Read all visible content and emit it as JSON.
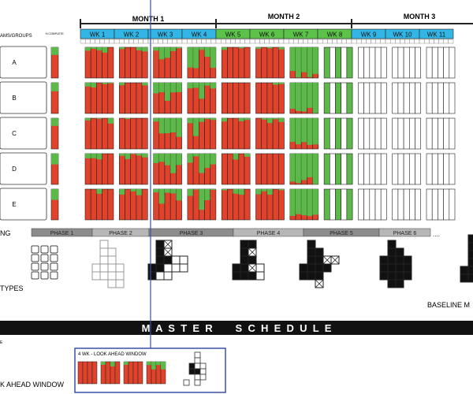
{
  "months": [
    "MONTH 1",
    "MONTH 2",
    "MONTH 3"
  ],
  "weeks": [
    {
      "label": "WK 1",
      "color": "#33b6e6"
    },
    {
      "label": "WK 2",
      "color": "#33b6e6"
    },
    {
      "label": "WK 3",
      "color": "#33b6e6"
    },
    {
      "label": "WK 4",
      "color": "#33b6e6"
    },
    {
      "label": "WK 5",
      "color": "#5cc24a"
    },
    {
      "label": "WK 6",
      "color": "#5cc24a"
    },
    {
      "label": "WK 7",
      "color": "#5cc24a"
    },
    {
      "label": "WK 8",
      "color": "#5cc24a"
    },
    {
      "label": "WK 9",
      "color": "#33b6e6"
    },
    {
      "label": "WK 10",
      "color": "#33b6e6"
    },
    {
      "label": "WK 11",
      "color": "#33b6e6"
    }
  ],
  "teams_header": "AMS/GROUPS",
  "complete_header": "% COMPLETE",
  "teams": [
    "A",
    "B",
    "C",
    "D",
    "E"
  ],
  "team_completion": [
    0.25,
    0.28,
    0.25,
    0.35,
    0.35
  ],
  "phases": [
    {
      "label": "PHASE 1",
      "color": "#8c8c8c"
    },
    {
      "label": "PHASE 2",
      "color": "#b7b7b7"
    },
    {
      "label": "PHASE 3",
      "color": "#8c8c8c"
    },
    {
      "label": "PHASE 4",
      "color": "#b7b7b7"
    },
    {
      "label": "PHASE 5",
      "color": "#8c8c8c"
    },
    {
      "label": "PHASE 6",
      "color": "#b7b7b7"
    }
  ],
  "phase_more": "....",
  "left_labels": {
    "planning": "NG",
    "types": "TYPES",
    "lookahead": "K AHEAD WINDOW",
    "small": "E"
  },
  "baseline_label": "BASELINE M",
  "master_schedule": "M  A  S  T  E  R        S  C  H  E  D  U  L  E",
  "lookahead_title": "4 WK - LOOK AHEAD WINDOW",
  "colors": {
    "red": "#e0422c",
    "green": "#5cb848",
    "black": "#111111",
    "blue_line": "#3c4fa8"
  }
}
